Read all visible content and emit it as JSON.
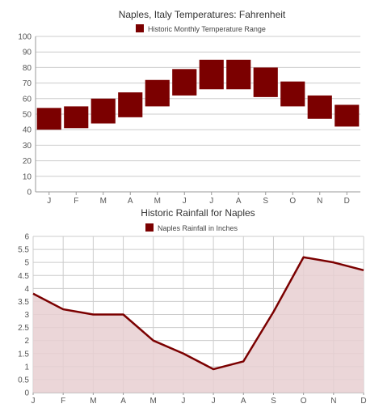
{
  "chart_data": [
    {
      "type": "bar",
      "title": "Naples, Italy Temperatures: Fahrenheit",
      "legend": {
        "label": "Historic Monthly Temperature Range",
        "position": "top-center"
      },
      "categories": [
        "J",
        "F",
        "M",
        "A",
        "M",
        "J",
        "J",
        "A",
        "S",
        "O",
        "N",
        "D"
      ],
      "series": [
        {
          "name": "Historic Monthly Temperature Range",
          "low": [
            40,
            41,
            44,
            48,
            55,
            62,
            66,
            66,
            61,
            55,
            47,
            42
          ],
          "high": [
            54,
            55,
            60,
            64,
            72,
            79,
            85,
            85,
            80,
            71,
            62,
            56
          ]
        }
      ],
      "ylim": [
        0,
        100
      ],
      "yticks": [
        0,
        10,
        20,
        30,
        40,
        50,
        60,
        70,
        80,
        90,
        100
      ],
      "grid": true,
      "color": "#7b0000"
    },
    {
      "type": "area",
      "title": "Historic Rainfall for Naples",
      "legend": {
        "label": "Naples Rainfall in Inches",
        "position": "top-center"
      },
      "categories": [
        "J",
        "F",
        "M",
        "A",
        "M",
        "J",
        "J",
        "A",
        "S",
        "O",
        "N",
        "D"
      ],
      "series": [
        {
          "name": "Naples Rainfall in Inches",
          "values": [
            3.8,
            3.2,
            3.0,
            3.0,
            2.0,
            1.5,
            0.9,
            1.2,
            3.1,
            5.2,
            5.0,
            4.7
          ]
        }
      ],
      "ylim": [
        0,
        6
      ],
      "yticks": [
        "0",
        "0.5",
        "1",
        "1.5",
        "2",
        "2.5",
        "3",
        "3.5",
        "4",
        "4.5",
        "5",
        "5.5",
        "6"
      ],
      "grid": true,
      "color": "#7b0000",
      "fill": "#e8cfd1"
    }
  ]
}
